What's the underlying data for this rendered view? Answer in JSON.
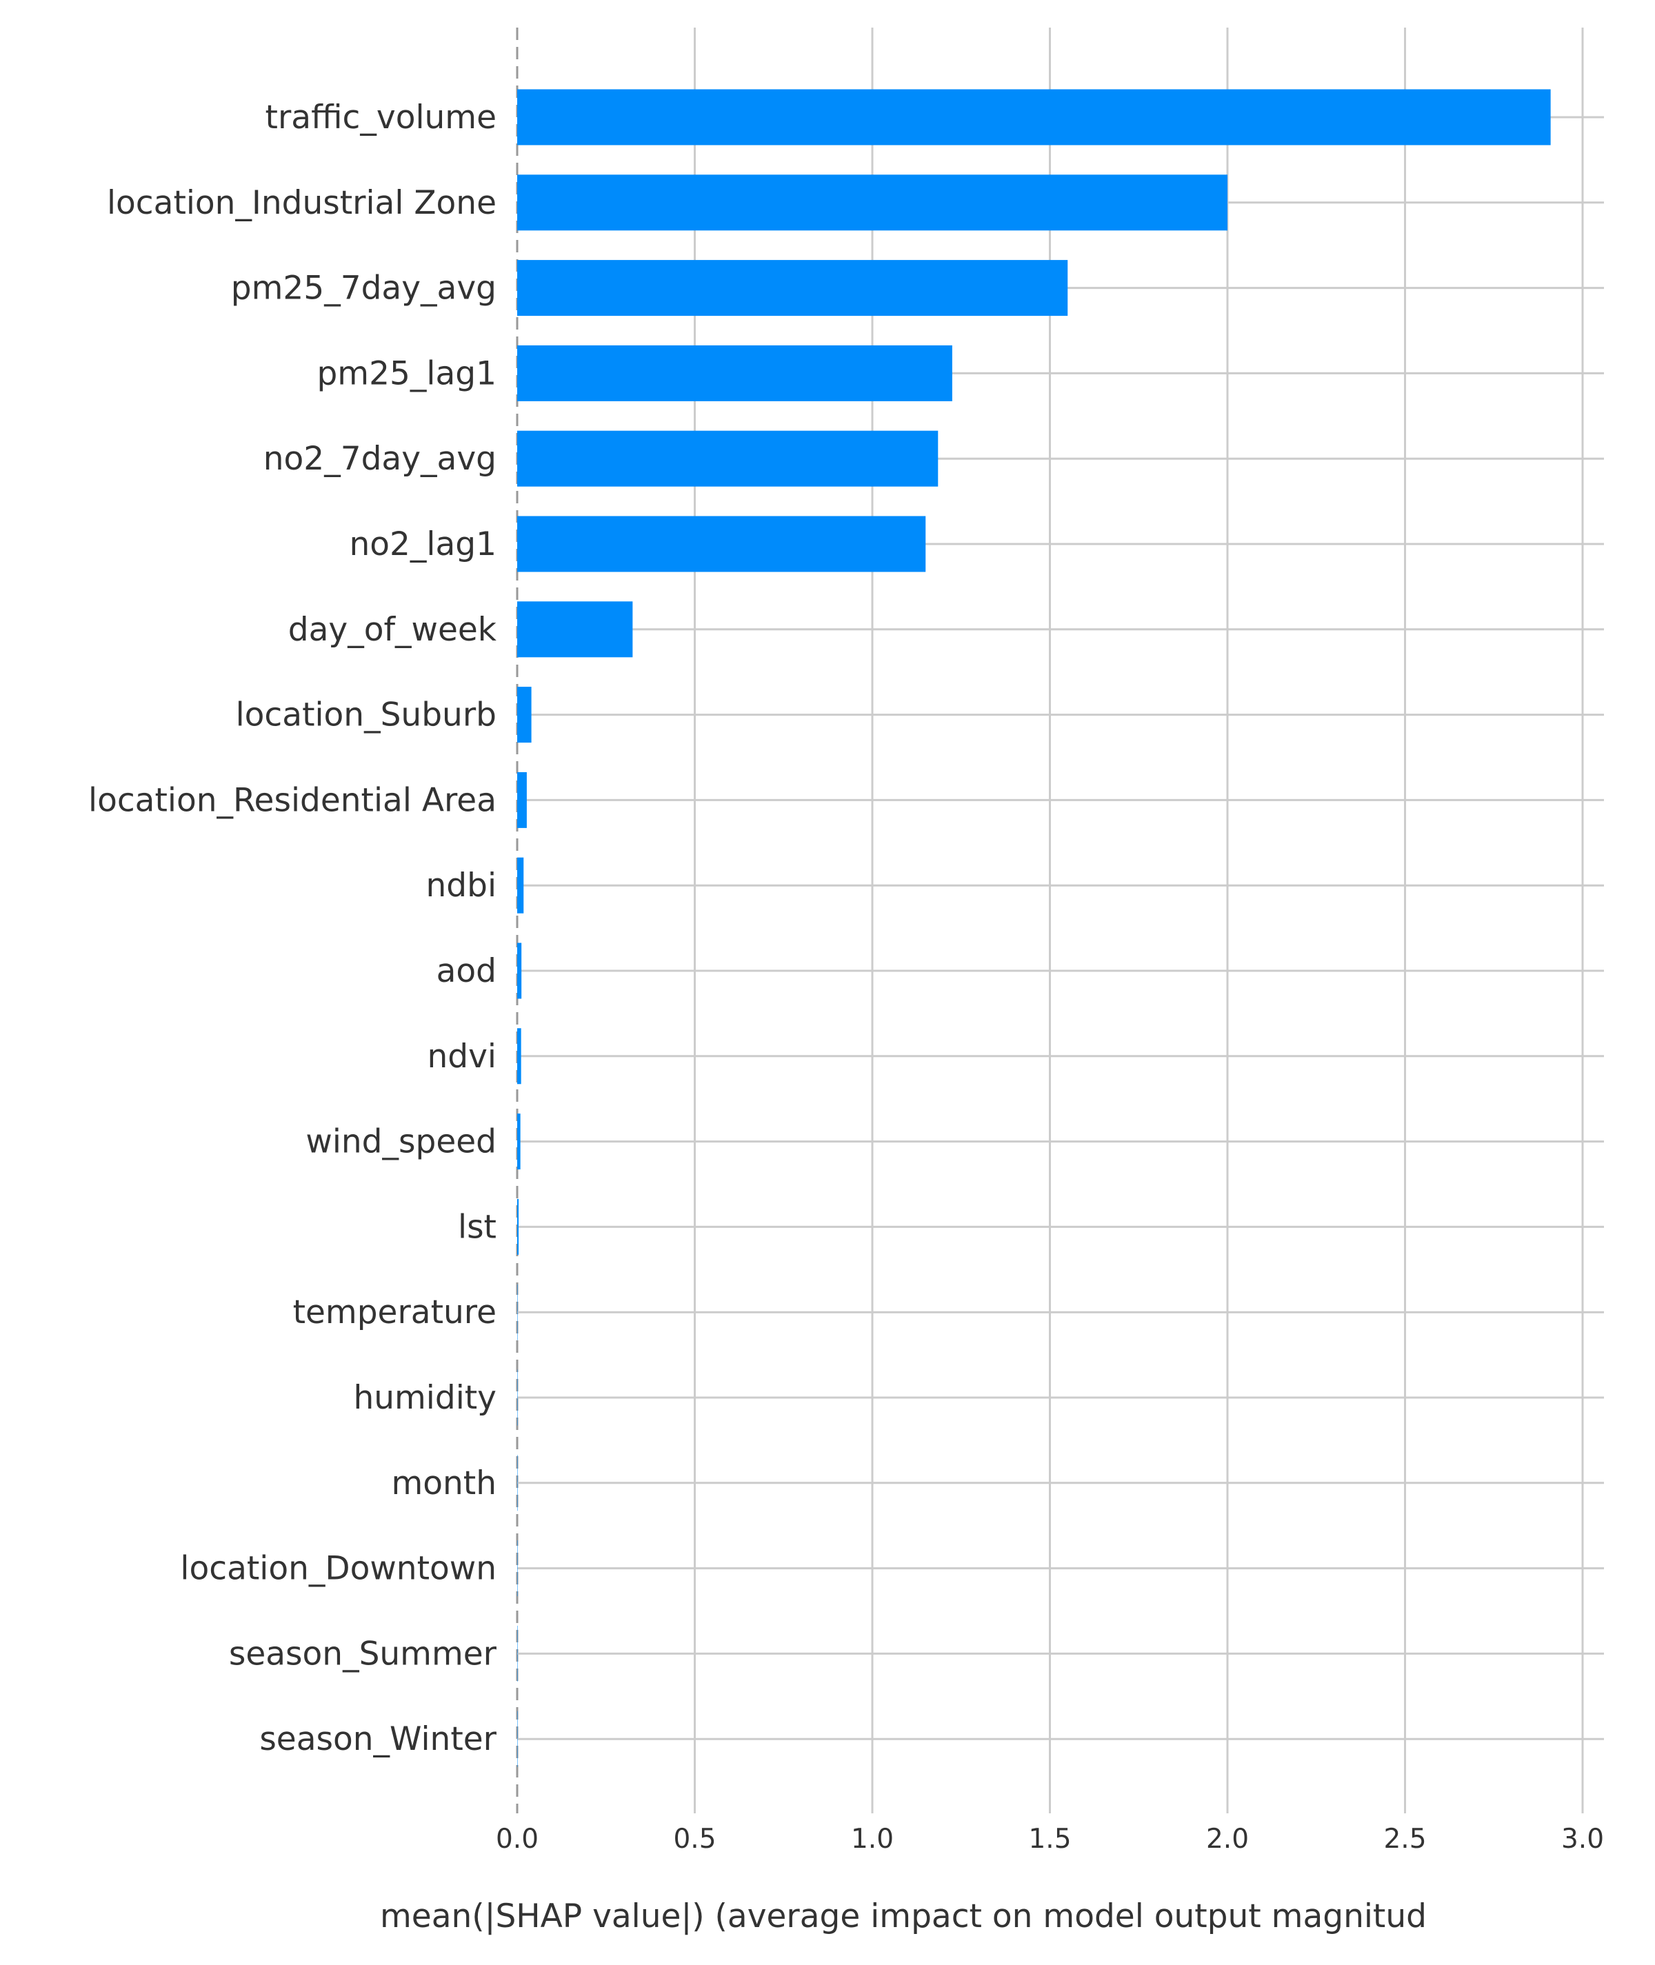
{
  "colors": {
    "bar": "#008bfb",
    "grid": "#cccccc",
    "text": "#333333"
  },
  "chart_data": {
    "type": "bar",
    "orientation": "horizontal",
    "title": "",
    "xlabel": "mean(|SHAP value|) (average impact on model output magnitud",
    "ylabel": "",
    "xlim": [
      0,
      3.05
    ],
    "xticks": [
      "0.0",
      "0.5",
      "1.0",
      "1.5",
      "2.0",
      "2.5",
      "3.0"
    ],
    "grid": true,
    "legend": "none",
    "categories": [
      "traffic_volume",
      "location_Industrial Zone",
      "pm25_7day_avg",
      "pm25_lag1",
      "no2_7day_avg",
      "no2_lag1",
      "day_of_week",
      "location_Suburb",
      "location_Residential Area",
      "ndbi",
      "aod",
      "ndvi",
      "wind_speed",
      "lst",
      "temperature",
      "humidity",
      "month",
      "location_Downtown",
      "season_Summer",
      "season_Winter"
    ],
    "values": [
      2.91,
      2.0,
      1.55,
      1.225,
      1.185,
      1.15,
      0.325,
      0.04,
      0.027,
      0.018,
      0.012,
      0.011,
      0.009,
      0.004,
      0.001,
      0.001,
      0.001,
      0.001,
      0.001,
      0.001
    ]
  }
}
